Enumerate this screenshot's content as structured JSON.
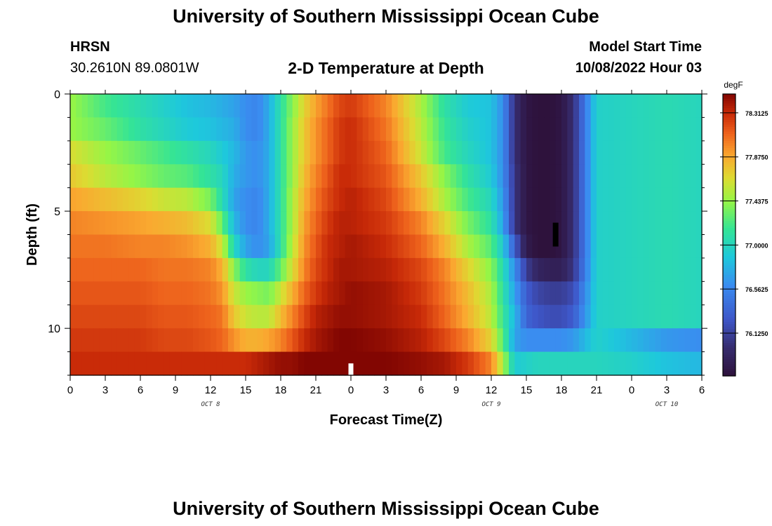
{
  "header": {
    "title": "University of Southern Mississippi Ocean Cube",
    "station": "HRSN",
    "coords": "30.2610N  89.0801W",
    "subtitle": "2-D Temperature at Depth",
    "model_label": "Model Start Time",
    "model_time": "10/08/2022 Hour 03"
  },
  "footer": {
    "title": "University of Southern Mississippi Ocean Cube"
  },
  "chart_data": {
    "type": "heatmap",
    "title": "2-D Temperature at Depth",
    "xlabel": "Forecast Time(Z)",
    "ylabel": "Depth (ft)",
    "x_tick_labels": [
      "0",
      "3",
      "6",
      "9",
      "12",
      "15",
      "18",
      "21",
      "0",
      "3",
      "6",
      "9",
      "12",
      "15",
      "18",
      "21",
      "0",
      "3",
      "6"
    ],
    "x_range_hours": [
      0,
      54
    ],
    "date_labels": [
      {
        "label": "OCT 8",
        "hour": 12
      },
      {
        "label": "OCT 9",
        "hour": 36
      },
      {
        "label": "OCT 10",
        "hour": 51
      }
    ],
    "y_tick_labels": [
      "0",
      "5",
      "10"
    ],
    "y_range_ft": [
      0,
      12
    ],
    "colorbar": {
      "unit": "degF",
      "min": 75.7,
      "max": 78.5,
      "tick_labels": [
        "78.3125",
        "77.8750",
        "77.4375",
        "77.0000",
        "76.5625",
        "76.1250"
      ],
      "tick_values": [
        78.3125,
        77.875,
        77.4375,
        77.0,
        76.5625,
        76.125
      ]
    },
    "depth_levels_ft": [
      0.5,
      1.5,
      2.5,
      3.5,
      4.5,
      5.5,
      6.5,
      7.5,
      8.5,
      9.5,
      10.5,
      11.5
    ],
    "hour_step": 0.5,
    "value_grid_degF_key_times": {
      "hours": [
        0,
        3,
        6,
        8,
        10,
        12,
        13,
        14,
        15,
        16,
        17,
        18,
        19,
        20,
        21,
        22,
        23,
        24,
        27,
        30,
        32,
        34,
        36,
        37,
        38,
        39,
        40,
        41,
        42,
        43,
        45,
        48,
        51,
        54
      ],
      "rows": [
        [
          77.45,
          77.2,
          77.05,
          76.95,
          76.85,
          76.8,
          76.75,
          76.7,
          76.6,
          76.55,
          76.75,
          77.1,
          77.4,
          77.7,
          77.9,
          78.05,
          78.2,
          78.25,
          78.0,
          77.5,
          77.1,
          76.9,
          76.85,
          76.6,
          76.0,
          75.75,
          75.7,
          75.7,
          75.75,
          76.0,
          76.95,
          77.0,
          77.05,
          77.0
        ],
        [
          77.45,
          77.3,
          77.1,
          77.0,
          76.9,
          76.85,
          76.8,
          76.75,
          76.6,
          76.55,
          76.75,
          77.1,
          77.45,
          77.75,
          77.95,
          78.1,
          78.25,
          78.3,
          78.05,
          77.55,
          77.15,
          76.95,
          76.85,
          76.6,
          76.0,
          75.75,
          75.7,
          75.7,
          75.75,
          76.0,
          76.95,
          77.0,
          77.05,
          77.0
        ],
        [
          77.65,
          77.45,
          77.3,
          77.2,
          77.1,
          77.0,
          76.9,
          76.8,
          76.65,
          76.6,
          76.75,
          77.1,
          77.45,
          77.75,
          77.95,
          78.1,
          78.25,
          78.3,
          78.1,
          77.6,
          77.2,
          77.0,
          76.85,
          76.6,
          76.0,
          75.75,
          75.7,
          75.7,
          75.75,
          76.0,
          76.95,
          77.0,
          77.05,
          77.0
        ],
        [
          77.75,
          77.55,
          77.4,
          77.3,
          77.25,
          77.1,
          77.0,
          76.75,
          76.65,
          76.6,
          76.75,
          77.1,
          77.45,
          77.8,
          78.0,
          78.15,
          78.3,
          78.3,
          78.15,
          77.75,
          77.4,
          77.1,
          76.9,
          76.6,
          76.05,
          75.75,
          75.7,
          75.7,
          75.75,
          76.0,
          76.95,
          77.0,
          77.05,
          77.0
        ],
        [
          77.9,
          77.8,
          77.7,
          77.6,
          77.55,
          77.35,
          77.05,
          76.7,
          76.6,
          76.55,
          76.75,
          77.1,
          77.5,
          77.85,
          78.05,
          78.2,
          78.3,
          78.35,
          78.2,
          77.85,
          77.5,
          77.2,
          77.0,
          76.65,
          76.05,
          75.75,
          75.7,
          75.7,
          75.75,
          76.0,
          76.95,
          77.0,
          77.05,
          77.0
        ],
        [
          78.0,
          77.95,
          77.9,
          77.85,
          77.8,
          77.65,
          77.3,
          76.8,
          76.6,
          76.55,
          76.75,
          77.1,
          77.5,
          77.9,
          78.1,
          78.25,
          78.35,
          78.35,
          78.25,
          78.0,
          77.7,
          77.35,
          77.1,
          76.7,
          76.05,
          75.75,
          75.7,
          75.7,
          75.75,
          76.0,
          76.95,
          77.0,
          77.05,
          77.0
        ],
        [
          78.05,
          78.05,
          78.0,
          78.0,
          77.95,
          77.85,
          77.6,
          77.0,
          76.7,
          76.6,
          76.7,
          77.1,
          77.55,
          77.95,
          78.15,
          78.3,
          78.35,
          78.4,
          78.3,
          78.1,
          77.85,
          77.5,
          77.25,
          76.9,
          76.3,
          75.8,
          75.7,
          75.7,
          75.75,
          76.0,
          76.95,
          77.0,
          77.05,
          77.0
        ],
        [
          78.1,
          78.1,
          78.1,
          78.05,
          78.05,
          78.0,
          77.85,
          77.4,
          77.1,
          77.0,
          77.0,
          77.3,
          77.65,
          78.0,
          78.2,
          78.3,
          78.4,
          78.4,
          78.35,
          78.2,
          78.0,
          77.7,
          77.4,
          77.05,
          76.6,
          76.1,
          75.9,
          75.85,
          75.85,
          76.05,
          76.95,
          77.0,
          77.05,
          77.0
        ],
        [
          78.15,
          78.15,
          78.15,
          78.1,
          78.1,
          78.05,
          77.95,
          77.6,
          77.45,
          77.4,
          77.35,
          77.6,
          77.85,
          78.1,
          78.25,
          78.35,
          78.4,
          78.45,
          78.4,
          78.25,
          78.05,
          77.8,
          77.5,
          77.1,
          76.7,
          76.3,
          76.15,
          76.1,
          76.1,
          76.2,
          76.95,
          77.0,
          77.05,
          77.0
        ],
        [
          78.2,
          78.2,
          78.2,
          78.15,
          78.15,
          78.1,
          78.05,
          77.75,
          77.6,
          77.55,
          77.55,
          77.8,
          78.0,
          78.2,
          78.35,
          78.4,
          78.45,
          78.45,
          78.4,
          78.3,
          78.1,
          77.85,
          77.55,
          77.15,
          76.8,
          76.35,
          76.25,
          76.2,
          76.2,
          76.3,
          76.95,
          77.0,
          77.05,
          77.0
        ],
        [
          78.25,
          78.25,
          78.25,
          78.2,
          78.2,
          78.15,
          78.1,
          77.95,
          77.85,
          77.85,
          77.9,
          78.0,
          78.15,
          78.3,
          78.4,
          78.45,
          78.5,
          78.5,
          78.45,
          78.35,
          78.2,
          78.0,
          77.7,
          77.25,
          76.7,
          76.6,
          76.6,
          76.6,
          76.6,
          76.65,
          76.95,
          76.8,
          76.65,
          76.6
        ],
        [
          78.3,
          78.3,
          78.3,
          78.3,
          78.3,
          78.3,
          78.3,
          78.3,
          78.3,
          78.35,
          78.4,
          78.45,
          78.45,
          78.5,
          78.5,
          78.5,
          78.5,
          78.5,
          78.5,
          78.45,
          78.4,
          78.25,
          78.0,
          77.5,
          76.9,
          76.95,
          77.0,
          77.0,
          77.0,
          77.0,
          77.0,
          76.95,
          76.85,
          76.8
        ]
      ]
    },
    "markers": [
      {
        "color": "#ffffff",
        "hour": 24,
        "depth_ft": 11.75,
        "kind": "bar"
      },
      {
        "color": "#000000",
        "hour": 41.5,
        "depth_ft": 6,
        "kind": "bar"
      }
    ]
  }
}
